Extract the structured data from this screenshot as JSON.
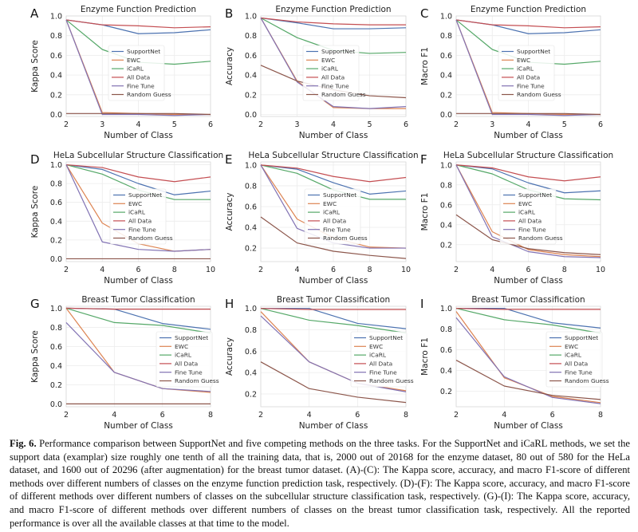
{
  "caption": {
    "label": "Fig. 6.",
    "text": "Performance comparison between SupportNet and five competing methods on the three tasks. For the SupportNet and iCaRL methods, we set the support data (examplar) size roughly one tenth of all the training data, that is, 2000 out of 20168 for the enzyme dataset, 80 out of 580 for the HeLa dataset, and 1600 out of 20296 (after augmentation) for the breast tumor dataset. (A)-(C): The Kappa score, accuracy, and macro F1-score of different methods over different numbers of classes on the enzyme function prediction task, respectively. (D)-(F): The Kappa score, accuracy, and macro F1-score of different methods over different numbers of classes on the subcellular structure classification task, respectively. (G)-(I): The Kappa score, accuracy, and macro F1-score of different methods over different numbers of classes on the breast tumor classification task, respectively. All the reported performance is over all the available classes at that time to the model."
  },
  "colors": {
    "SupportNet": "#4c72b0",
    "EWC": "#dd8452",
    "iCaRL": "#55a868",
    "All Data": "#c44e52",
    "Fine Tune": "#8172b3",
    "Random Guess": "#8c564b"
  },
  "chart_data": [
    {
      "panel": "A",
      "type": "line",
      "title": "Enzyme Function Prediction",
      "xlabel": "Number of Class",
      "ylabel": "Kappa Score",
      "x": [
        2,
        3,
        4,
        5,
        6
      ],
      "xticks": [
        2,
        3,
        4,
        5,
        6
      ],
      "xlim": [
        2,
        6
      ],
      "yticks": [
        0.0,
        0.2,
        0.4,
        0.6,
        0.8,
        1.0
      ],
      "ytick_labels": [
        "0.0",
        "0.2",
        "0.4",
        "0.6",
        "0.8",
        "1.0"
      ],
      "ylim": [
        -0.02,
        1.0
      ],
      "legend": "center",
      "series": [
        {
          "name": "SupportNet",
          "values": [
            0.96,
            0.91,
            0.82,
            0.83,
            0.86
          ]
        },
        {
          "name": "EWC",
          "values": [
            0.96,
            0.02,
            0.01,
            0.0,
            0.0
          ]
        },
        {
          "name": "iCaRL",
          "values": [
            0.96,
            0.66,
            0.53,
            0.51,
            0.54
          ]
        },
        {
          "name": "All Data",
          "values": [
            0.96,
            0.91,
            0.9,
            0.88,
            0.89
          ]
        },
        {
          "name": "Fine Tune",
          "values": [
            0.96,
            0.0,
            0.0,
            -0.01,
            0.0
          ]
        },
        {
          "name": "Random Guess",
          "values": [
            0.01,
            0.01,
            0.01,
            0.01,
            0.0
          ]
        }
      ]
    },
    {
      "panel": "B",
      "type": "line",
      "title": "Enzyme Function Prediction",
      "xlabel": "Number of Class",
      "ylabel": "Accuracy",
      "x": [
        2,
        3,
        4,
        5,
        6
      ],
      "xticks": [
        2,
        3,
        4,
        5,
        6
      ],
      "xlim": [
        2,
        6
      ],
      "yticks": [
        0.0,
        0.2,
        0.4,
        0.6,
        0.8,
        1.0
      ],
      "ytick_labels": [
        "0.0",
        "0.2",
        "0.4",
        "0.6",
        "0.8",
        "1.0"
      ],
      "ylim": [
        -0.02,
        1.0
      ],
      "legend": "center",
      "series": [
        {
          "name": "SupportNet",
          "values": [
            0.98,
            0.93,
            0.87,
            0.87,
            0.88
          ]
        },
        {
          "name": "EWC",
          "values": [
            0.98,
            0.34,
            0.07,
            0.06,
            0.06
          ]
        },
        {
          "name": "iCaRL",
          "values": [
            0.98,
            0.78,
            0.65,
            0.62,
            0.63
          ]
        },
        {
          "name": "All Data",
          "values": [
            0.98,
            0.94,
            0.92,
            0.91,
            0.91
          ]
        },
        {
          "name": "Fine Tune",
          "values": [
            0.98,
            0.33,
            0.08,
            0.06,
            0.08
          ]
        },
        {
          "name": "Random Guess",
          "values": [
            0.5,
            0.34,
            0.25,
            0.19,
            0.17
          ]
        }
      ]
    },
    {
      "panel": "C",
      "type": "line",
      "title": "Enzyme Function Prediction",
      "xlabel": "Number of Class",
      "ylabel": "Macro F1",
      "x": [
        2,
        3,
        4,
        5,
        6
      ],
      "xticks": [
        2,
        3,
        4,
        5,
        6
      ],
      "xlim": [
        2,
        6
      ],
      "yticks": [
        0.0,
        0.2,
        0.4,
        0.6,
        0.8,
        1.0
      ],
      "ytick_labels": [
        "0.0",
        "0.2",
        "0.4",
        "0.6",
        "0.8",
        "1.0"
      ],
      "ylim": [
        -0.02,
        1.0
      ],
      "legend": "center",
      "series": [
        {
          "name": "SupportNet",
          "values": [
            0.96,
            0.91,
            0.82,
            0.83,
            0.86
          ]
        },
        {
          "name": "EWC",
          "values": [
            0.96,
            0.02,
            0.01,
            0.0,
            0.0
          ]
        },
        {
          "name": "iCaRL",
          "values": [
            0.96,
            0.66,
            0.53,
            0.51,
            0.54
          ]
        },
        {
          "name": "All Data",
          "values": [
            0.96,
            0.91,
            0.9,
            0.88,
            0.89
          ]
        },
        {
          "name": "Fine Tune",
          "values": [
            0.96,
            0.0,
            0.0,
            -0.01,
            0.0
          ]
        },
        {
          "name": "Random Guess",
          "values": [
            0.01,
            0.01,
            0.01,
            0.01,
            0.0
          ]
        }
      ]
    },
    {
      "panel": "D",
      "type": "line",
      "title": "HeLa Subcellular Structure Classification",
      "xlabel": "Number of Class",
      "ylabel": "Kappa Score",
      "x": [
        2,
        4,
        6,
        8,
        10
      ],
      "xticks": [
        2,
        4,
        6,
        8,
        10
      ],
      "xlim": [
        2,
        10
      ],
      "yticks": [
        0.0,
        0.2,
        0.4,
        0.6,
        0.8,
        1.0
      ],
      "ytick_labels": [
        "0.0",
        "0.2",
        "0.4",
        "0.6",
        "0.8",
        "1.0"
      ],
      "ylim": [
        -0.03,
        1.03
      ],
      "legend": "center-right",
      "series": [
        {
          "name": "SupportNet",
          "values": [
            1.0,
            0.95,
            0.8,
            0.68,
            0.72
          ]
        },
        {
          "name": "EWC",
          "values": [
            1.0,
            0.38,
            0.16,
            0.08,
            0.1
          ]
        },
        {
          "name": "iCaRL",
          "values": [
            1.0,
            0.9,
            0.73,
            0.63,
            0.63
          ]
        },
        {
          "name": "All Data",
          "values": [
            1.0,
            0.97,
            0.87,
            0.82,
            0.87
          ]
        },
        {
          "name": "Fine Tune",
          "values": [
            1.0,
            0.18,
            0.1,
            0.08,
            0.1
          ]
        },
        {
          "name": "Random Guess",
          "values": [
            0.0,
            0.0,
            0.0,
            0.0,
            0.0
          ]
        }
      ]
    },
    {
      "panel": "E",
      "type": "line",
      "title": "HeLa Subcellular Structure Classification",
      "xlabel": "Number of Class",
      "ylabel": "Accuracy",
      "x": [
        2,
        4,
        6,
        8,
        10
      ],
      "xticks": [
        2,
        4,
        6,
        8,
        10
      ],
      "xlim": [
        2,
        10
      ],
      "yticks": [
        0.2,
        0.4,
        0.6,
        0.8,
        1.0
      ],
      "ytick_labels": [
        "0.2",
        "0.4",
        "0.6",
        "0.8",
        "1.0"
      ],
      "ylim": [
        0.07,
        1.03
      ],
      "legend": "center-right",
      "series": [
        {
          "name": "SupportNet",
          "values": [
            1.0,
            0.96,
            0.83,
            0.72,
            0.75
          ]
        },
        {
          "name": "EWC",
          "values": [
            1.0,
            0.48,
            0.3,
            0.21,
            0.2
          ]
        },
        {
          "name": "iCaRL",
          "values": [
            1.0,
            0.92,
            0.76,
            0.67,
            0.67
          ]
        },
        {
          "name": "All Data",
          "values": [
            1.0,
            0.97,
            0.89,
            0.84,
            0.88
          ]
        },
        {
          "name": "Fine Tune",
          "values": [
            1.0,
            0.39,
            0.25,
            0.2,
            0.2
          ]
        },
        {
          "name": "Random Guess",
          "values": [
            0.5,
            0.25,
            0.17,
            0.13,
            0.1
          ]
        }
      ]
    },
    {
      "panel": "F",
      "type": "line",
      "title": "HeLa Subcellular Structure Classification",
      "xlabel": "Number of Class",
      "ylabel": "Macro F1",
      "x": [
        2,
        4,
        6,
        8,
        10
      ],
      "xticks": [
        2,
        4,
        6,
        8,
        10
      ],
      "xlim": [
        2,
        10
      ],
      "yticks": [
        0.2,
        0.4,
        0.6,
        0.8,
        1.0
      ],
      "ytick_labels": [
        "0.2",
        "0.4",
        "0.6",
        "0.8",
        "1.0"
      ],
      "ylim": [
        0.03,
        1.03
      ],
      "legend": "center-right",
      "series": [
        {
          "name": "SupportNet",
          "values": [
            1.0,
            0.96,
            0.82,
            0.72,
            0.74
          ]
        },
        {
          "name": "EWC",
          "values": [
            1.0,
            0.33,
            0.15,
            0.1,
            0.08
          ]
        },
        {
          "name": "iCaRL",
          "values": [
            1.0,
            0.91,
            0.75,
            0.66,
            0.65
          ]
        },
        {
          "name": "All Data",
          "values": [
            1.0,
            0.97,
            0.88,
            0.84,
            0.88
          ]
        },
        {
          "name": "Fine Tune",
          "values": [
            1.0,
            0.28,
            0.13,
            0.08,
            0.07
          ]
        },
        {
          "name": "Random Guess",
          "values": [
            0.5,
            0.25,
            0.16,
            0.12,
            0.1
          ]
        }
      ]
    },
    {
      "panel": "G",
      "type": "line",
      "title": "Breast Tumor Classification",
      "xlabel": "Number of Class",
      "ylabel": "Kappa Score",
      "x": [
        2,
        4,
        6,
        8
      ],
      "xticks": [
        2,
        4,
        6,
        8
      ],
      "xlim": [
        2,
        8
      ],
      "yticks": [
        0.0,
        0.2,
        0.4,
        0.6,
        0.8,
        1.0
      ],
      "ytick_labels": [
        "0.0",
        "0.2",
        "0.4",
        "0.6",
        "0.8",
        "1.0"
      ],
      "ylim": [
        -0.03,
        1.02
      ],
      "legend": "lower-right",
      "series": [
        {
          "name": "SupportNet",
          "values": [
            1.0,
            0.99,
            0.84,
            0.78
          ]
        },
        {
          "name": "EWC",
          "values": [
            1.0,
            0.33,
            0.16,
            0.12
          ]
        },
        {
          "name": "iCaRL",
          "values": [
            1.0,
            0.85,
            0.82,
            0.74
          ]
        },
        {
          "name": "All Data",
          "values": [
            1.0,
            0.99,
            0.99,
            0.99
          ]
        },
        {
          "name": "Fine Tune",
          "values": [
            0.85,
            0.33,
            0.16,
            0.13
          ]
        },
        {
          "name": "Random Guess",
          "values": [
            0.0,
            0.0,
            0.0,
            0.0
          ]
        }
      ]
    },
    {
      "panel": "H",
      "type": "line",
      "title": "Breast Tumor Classification",
      "xlabel": "Number of Class",
      "ylabel": "Accuracy",
      "x": [
        2,
        4,
        6,
        8
      ],
      "xticks": [
        2,
        4,
        6,
        8
      ],
      "xlim": [
        2,
        8
      ],
      "yticks": [
        0.2,
        0.4,
        0.6,
        0.8,
        1.0
      ],
      "ytick_labels": [
        "0.2",
        "0.4",
        "0.6",
        "0.8",
        "1.0"
      ],
      "ylim": [
        0.08,
        1.02
      ],
      "legend": "lower-right",
      "series": [
        {
          "name": "SupportNet",
          "values": [
            1.0,
            1.0,
            0.86,
            0.81
          ]
        },
        {
          "name": "EWC",
          "values": [
            0.97,
            0.5,
            0.3,
            0.23
          ]
        },
        {
          "name": "iCaRL",
          "values": [
            1.0,
            0.89,
            0.84,
            0.77
          ]
        },
        {
          "name": "All Data",
          "values": [
            1.0,
            0.99,
            0.99,
            0.99
          ]
        },
        {
          "name": "Fine Tune",
          "values": [
            0.93,
            0.5,
            0.3,
            0.22
          ]
        },
        {
          "name": "Random Guess",
          "values": [
            0.5,
            0.25,
            0.17,
            0.12
          ]
        }
      ]
    },
    {
      "panel": "I",
      "type": "line",
      "title": "Breast Tumor Classification",
      "xlabel": "Number of Class",
      "ylabel": "Macro F1",
      "x": [
        2,
        4,
        6,
        8
      ],
      "xticks": [
        2,
        4,
        6,
        8
      ],
      "xlim": [
        2,
        8
      ],
      "yticks": [
        0.2,
        0.4,
        0.6,
        0.8,
        1.0
      ],
      "ytick_labels": [
        "0.2",
        "0.4",
        "0.6",
        "0.8",
        "1.0"
      ],
      "ylim": [
        0.05,
        1.02
      ],
      "legend": "lower-right",
      "series": [
        {
          "name": "SupportNet",
          "values": [
            1.0,
            1.0,
            0.86,
            0.81
          ]
        },
        {
          "name": "EWC",
          "values": [
            0.97,
            0.33,
            0.15,
            0.09
          ]
        },
        {
          "name": "iCaRL",
          "values": [
            1.0,
            0.89,
            0.84,
            0.76
          ]
        },
        {
          "name": "All Data",
          "values": [
            1.0,
            0.99,
            0.99,
            0.99
          ]
        },
        {
          "name": "Fine Tune",
          "values": [
            0.91,
            0.34,
            0.14,
            0.08
          ]
        },
        {
          "name": "Random Guess",
          "values": [
            0.5,
            0.25,
            0.16,
            0.12
          ]
        }
      ]
    }
  ]
}
